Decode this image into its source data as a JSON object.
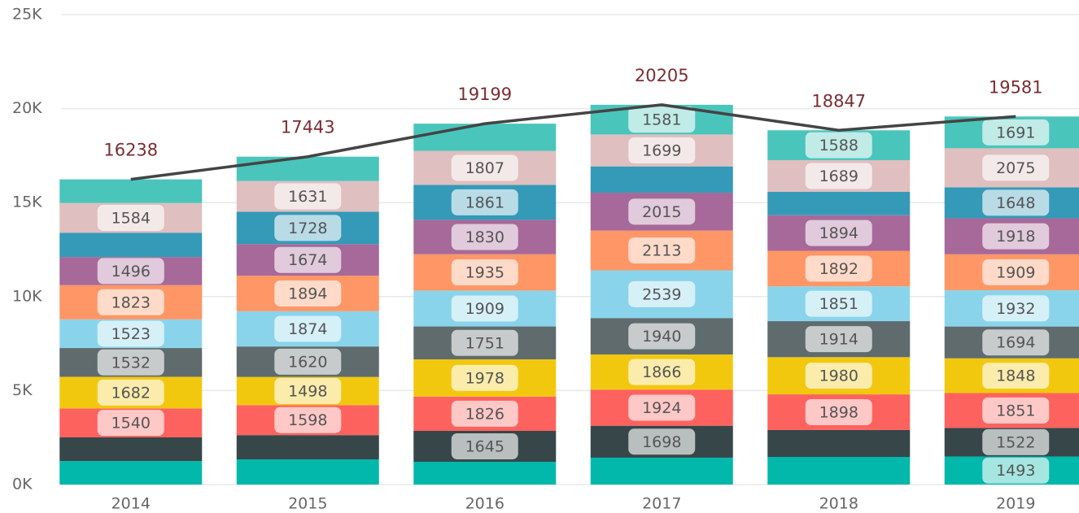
{
  "chart_data": {
    "type": "stacked_bar_line",
    "categories": [
      "2014",
      "2015",
      "2016",
      "2017",
      "2018",
      "2019"
    ],
    "ylim": [
      0,
      25000
    ],
    "yticks": [
      {
        "value": 0,
        "label": "0K"
      },
      {
        "value": 5000,
        "label": "5K"
      },
      {
        "value": 10000,
        "label": "10K"
      },
      {
        "value": 15000,
        "label": "15K"
      },
      {
        "value": 20000,
        "label": "20K"
      },
      {
        "value": 25000,
        "label": "25K"
      }
    ],
    "grid": true,
    "series": [
      {
        "color": "#01B8AA",
        "values": [
          1250,
          1340,
          1210,
          1430,
          1470,
          1493
        ],
        "labeled": [
          false,
          false,
          false,
          false,
          false,
          true
        ]
      },
      {
        "color": "#374649",
        "values": [
          1260,
          1290,
          1645,
          1698,
          1430,
          1522
        ],
        "labeled": [
          false,
          false,
          true,
          true,
          false,
          true
        ]
      },
      {
        "color": "#FD625E",
        "values": [
          1540,
          1598,
          1826,
          1924,
          1898,
          1851
        ],
        "labeled": [
          true,
          true,
          true,
          true,
          true,
          true
        ]
      },
      {
        "color": "#F2C80F",
        "values": [
          1682,
          1498,
          1978,
          1866,
          1980,
          1848
        ],
        "labeled": [
          true,
          true,
          true,
          true,
          true,
          true
        ]
      },
      {
        "color": "#5F6B6D",
        "values": [
          1532,
          1620,
          1751,
          1940,
          1914,
          1694
        ],
        "labeled": [
          true,
          true,
          true,
          true,
          true,
          true
        ]
      },
      {
        "color": "#8AD4EB",
        "values": [
          1523,
          1874,
          1909,
          2539,
          1851,
          1932
        ],
        "labeled": [
          true,
          true,
          true,
          true,
          true,
          true
        ]
      },
      {
        "color": "#FE9666",
        "values": [
          1823,
          1894,
          1935,
          2113,
          1892,
          1909
        ],
        "labeled": [
          true,
          true,
          true,
          true,
          true,
          true
        ]
      },
      {
        "color": "#A66999",
        "values": [
          1496,
          1674,
          1830,
          2015,
          1894,
          1918
        ],
        "labeled": [
          true,
          true,
          true,
          true,
          true,
          true
        ]
      },
      {
        "color": "#3599B8",
        "values": [
          1290,
          1728,
          1861,
          1400,
          1241,
          1648
        ],
        "labeled": [
          false,
          true,
          true,
          false,
          false,
          true
        ]
      },
      {
        "color": "#DFBFBF",
        "values": [
          1584,
          1631,
          1807,
          1699,
          1689,
          2075
        ],
        "labeled": [
          true,
          true,
          true,
          true,
          true,
          true
        ]
      },
      {
        "color": "#4AC5BB",
        "values": [
          1258,
          1296,
          1447,
          1581,
          1588,
          1691
        ],
        "labeled": [
          false,
          false,
          false,
          true,
          true,
          true
        ]
      }
    ],
    "totals": {
      "color": "#444444",
      "label_color": "#7B2D32",
      "values": [
        16238,
        17443,
        19199,
        20205,
        18847,
        19581
      ]
    }
  }
}
